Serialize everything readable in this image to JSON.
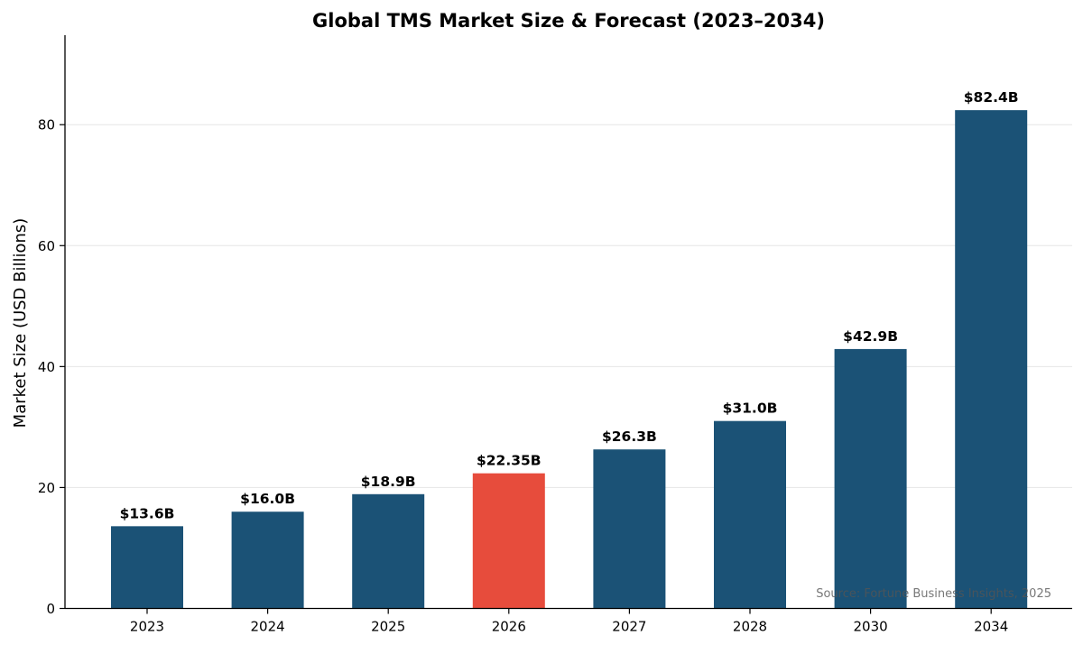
{
  "chart_data": {
    "type": "bar",
    "title": "Global TMS Market Size & Forecast (2023–2034)",
    "xlabel": "",
    "ylabel": "Market Size (USD Billions)",
    "categories": [
      "2023",
      "2024",
      "2025",
      "2026",
      "2027",
      "2028",
      "2030",
      "2034"
    ],
    "values": [
      13.6,
      16.0,
      18.9,
      22.35,
      26.3,
      31.0,
      42.9,
      82.4
    ],
    "data_labels": [
      "$13.6B",
      "$16.0B",
      "$18.9B",
      "$22.35B",
      "$26.3B",
      "$31.0B",
      "$42.9B",
      "$82.4B"
    ],
    "highlight_index": 3,
    "colors": {
      "bar": "#1b5276",
      "highlight": "#e74c3c",
      "grid": "#e6e6e6"
    },
    "ylim": [
      0,
      94.8
    ],
    "yticks": [
      0,
      20,
      40,
      60,
      80
    ],
    "grid": "horizontal",
    "annotation": "Source: Fortune Business Insights, 2025"
  }
}
